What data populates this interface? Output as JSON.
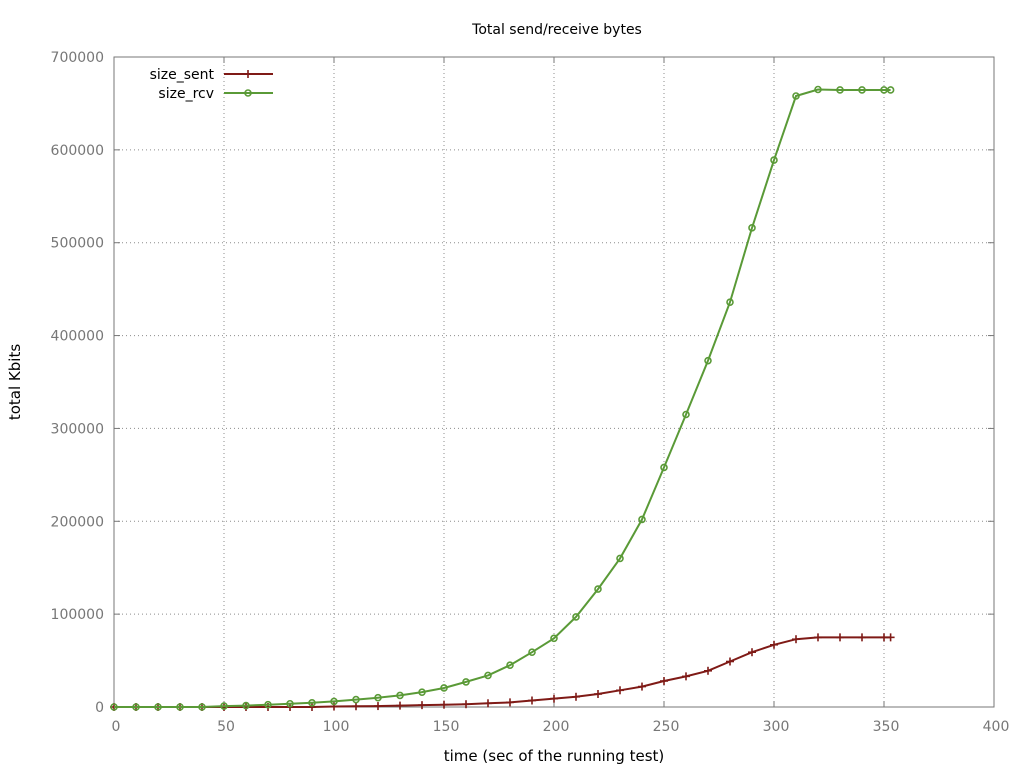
{
  "chart_data": {
    "type": "line",
    "title": "Total send/receive bytes",
    "xlabel": "time (sec of the running test)",
    "ylabel": "total Kbits",
    "xlim": [
      0,
      400
    ],
    "ylim": [
      0,
      700000
    ],
    "xticks": [
      0,
      50,
      100,
      150,
      200,
      250,
      300,
      350,
      400
    ],
    "yticks": [
      0,
      100000,
      200000,
      300000,
      400000,
      500000,
      600000,
      700000
    ],
    "grid": true,
    "legend_position": "top-left",
    "series": [
      {
        "name": "size_sent",
        "color": "#7f1a16",
        "marker": "plus",
        "x": [
          0,
          10,
          20,
          30,
          40,
          50,
          60,
          70,
          80,
          90,
          100,
          110,
          120,
          130,
          140,
          150,
          160,
          170,
          180,
          190,
          200,
          210,
          220,
          230,
          240,
          250,
          260,
          270,
          280,
          290,
          300,
          310,
          320,
          330,
          340,
          350,
          353
        ],
        "y": [
          0,
          0,
          0,
          0,
          0,
          0,
          0,
          0,
          0,
          0,
          500,
          800,
          1000,
          1500,
          2000,
          2500,
          3000,
          4000,
          5000,
          7000,
          9000,
          11000,
          14000,
          18000,
          22000,
          28000,
          33000,
          39000,
          49000,
          59000,
          67000,
          73000,
          75000,
          75000,
          75000,
          75000,
          75000
        ]
      },
      {
        "name": "size_rcv",
        "color": "#5a9a37",
        "marker": "circle",
        "x": [
          0,
          10,
          20,
          30,
          40,
          50,
          60,
          70,
          80,
          90,
          100,
          110,
          120,
          130,
          140,
          150,
          160,
          170,
          180,
          190,
          200,
          210,
          220,
          230,
          240,
          250,
          260,
          270,
          280,
          290,
          300,
          310,
          320,
          330,
          340,
          350,
          353
        ],
        "y": [
          0,
          0,
          0,
          0,
          0,
          1000,
          1500,
          2500,
          3500,
          4500,
          6000,
          8000,
          10000,
          12500,
          16000,
          20500,
          27000,
          34000,
          45000,
          59000,
          74000,
          97000,
          127000,
          160000,
          202000,
          258000,
          315000,
          373000,
          436000,
          516000,
          589000,
          658000,
          665000,
          664500,
          664500,
          664500,
          664500
        ]
      }
    ]
  }
}
